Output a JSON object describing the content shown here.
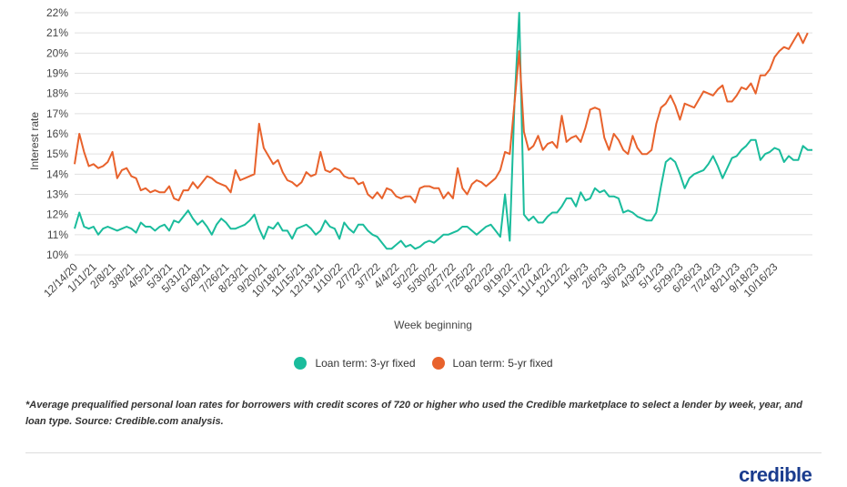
{
  "chart_data": {
    "type": "line",
    "title": "",
    "xlabel": "Week beginning",
    "ylabel": "Interest rate",
    "ylim": [
      10,
      22
    ],
    "yticks": [
      "10%",
      "11%",
      "12%",
      "13%",
      "14%",
      "15%",
      "16%",
      "17%",
      "18%",
      "19%",
      "20%",
      "21%",
      "22%"
    ],
    "grid": true,
    "legend_position": "bottom",
    "x_tick_labels": [
      "12/14/20",
      "1/11/21",
      "2/8/21",
      "3/8/21",
      "4/5/21",
      "5/3/21",
      "5/31/21",
      "6/28/21",
      "7/26/21",
      "8/23/21",
      "9/20/21",
      "10/18/21",
      "11/15/21",
      "12/13/21",
      "1/10/22",
      "2/7/22",
      "3/7/22",
      "4/4/22",
      "5/2/22",
      "5/30/22",
      "6/27/22",
      "7/25/22",
      "8/22/22",
      "9/19/22",
      "10/17/22",
      "11/14/22",
      "12/12/22",
      "1/9/23",
      "2/6/23",
      "3/6/23",
      "4/3/23",
      "5/1/23",
      "5/29/23",
      "6/26/23",
      "7/24/23",
      "8/21/23",
      "9/18/23",
      "10/16/23"
    ],
    "weeks_per_tick": 4,
    "series": [
      {
        "name": "Loan term: 3-yr fixed",
        "color": "#1abc9c",
        "values": [
          11.3,
          12.1,
          11.4,
          11.3,
          11.4,
          11.0,
          11.3,
          11.4,
          11.3,
          11.2,
          11.3,
          11.4,
          11.3,
          11.1,
          11.6,
          11.4,
          11.4,
          11.2,
          11.4,
          11.5,
          11.2,
          11.7,
          11.6,
          11.9,
          12.2,
          11.8,
          11.5,
          11.7,
          11.4,
          11.0,
          11.5,
          11.8,
          11.6,
          11.3,
          11.3,
          11.4,
          11.5,
          11.7,
          12.0,
          11.3,
          10.8,
          11.4,
          11.3,
          11.6,
          11.2,
          11.2,
          10.8,
          11.3,
          11.4,
          11.5,
          11.3,
          11.0,
          11.2,
          11.7,
          11.4,
          11.3,
          10.8,
          11.6,
          11.3,
          11.1,
          11.5,
          11.5,
          11.2,
          11.0,
          10.9,
          10.6,
          10.3,
          10.3,
          10.5,
          10.7,
          10.4,
          10.5,
          10.3,
          10.4,
          10.6,
          10.7,
          10.6,
          10.8,
          11.0,
          11.0,
          11.1,
          11.2,
          11.4,
          11.4,
          11.2,
          11.0,
          11.2,
          11.4,
          11.5,
          11.2,
          10.9,
          13.0,
          10.7,
          17.5,
          22.0,
          12.0,
          11.7,
          11.9,
          11.6,
          11.6,
          11.9,
          12.1,
          12.1,
          12.4,
          12.8,
          12.8,
          12.4,
          13.1,
          12.7,
          12.8,
          13.3,
          13.1,
          13.2,
          12.9,
          12.9,
          12.8,
          12.1,
          12.2,
          12.1,
          11.9,
          11.8,
          11.7,
          11.7,
          12.1,
          13.4,
          14.6,
          14.8,
          14.6,
          14.0,
          13.3,
          13.8,
          14.0,
          14.1,
          14.2,
          14.5,
          14.9,
          14.4,
          13.8,
          14.3,
          14.8,
          14.9,
          15.2,
          15.4,
          15.7,
          15.7,
          14.7,
          15.0,
          15.1,
          15.3,
          15.2,
          14.6,
          14.9,
          14.7,
          14.7,
          15.4,
          15.2,
          15.2
        ]
      },
      {
        "name": "Loan term: 5-yr fixed",
        "color": "#e8622c",
        "values": [
          14.5,
          16.0,
          15.1,
          14.4,
          14.5,
          14.3,
          14.4,
          14.6,
          15.1,
          13.8,
          14.2,
          14.3,
          13.9,
          13.8,
          13.2,
          13.3,
          13.1,
          13.2,
          13.1,
          13.1,
          13.4,
          12.8,
          12.7,
          13.2,
          13.2,
          13.6,
          13.3,
          13.6,
          13.9,
          13.8,
          13.6,
          13.5,
          13.4,
          13.1,
          14.2,
          13.7,
          13.8,
          13.9,
          14.0,
          16.5,
          15.3,
          14.9,
          14.5,
          14.7,
          14.1,
          13.7,
          13.6,
          13.4,
          13.6,
          14.1,
          13.9,
          14.0,
          15.1,
          14.2,
          14.1,
          14.3,
          14.2,
          13.9,
          13.8,
          13.8,
          13.5,
          13.6,
          13.0,
          12.8,
          13.1,
          12.8,
          13.3,
          13.2,
          12.9,
          12.8,
          12.9,
          12.9,
          12.6,
          13.3,
          13.4,
          13.4,
          13.3,
          13.3,
          12.8,
          13.1,
          12.8,
          14.3,
          13.3,
          13.0,
          13.5,
          13.7,
          13.6,
          13.4,
          13.6,
          13.8,
          14.2,
          15.1,
          15.0,
          17.5,
          20.1,
          16.1,
          15.2,
          15.4,
          15.9,
          15.2,
          15.5,
          15.6,
          15.3,
          16.9,
          15.6,
          15.8,
          15.9,
          15.6,
          16.3,
          17.2,
          17.3,
          17.2,
          15.8,
          15.2,
          16.0,
          15.7,
          15.2,
          15.0,
          15.9,
          15.3,
          15.0,
          15.0,
          15.2,
          16.5,
          17.3,
          17.5,
          17.9,
          17.4,
          16.7,
          17.5,
          17.4,
          17.3,
          17.7,
          18.1,
          18.0,
          17.9,
          18.2,
          18.4,
          17.6,
          17.6,
          17.9,
          18.3,
          18.2,
          18.5,
          18.0,
          18.9,
          18.9,
          19.2,
          19.8,
          20.1,
          20.3,
          20.2,
          20.6,
          21.0,
          20.5,
          21.0
        ]
      }
    ]
  },
  "legend": {
    "items": [
      {
        "label": "Loan term: 3-yr fixed",
        "color": "#1abc9c"
      },
      {
        "label": "Loan term: 5-yr fixed",
        "color": "#e8622c"
      }
    ]
  },
  "footnote": "*Average prequalified personal loan rates for borrowers with credit scores of 720 or higher who used the Credible marketplace to select a lender by week, year, and loan type. Source: Credible.com analysis.",
  "logo": "credible"
}
